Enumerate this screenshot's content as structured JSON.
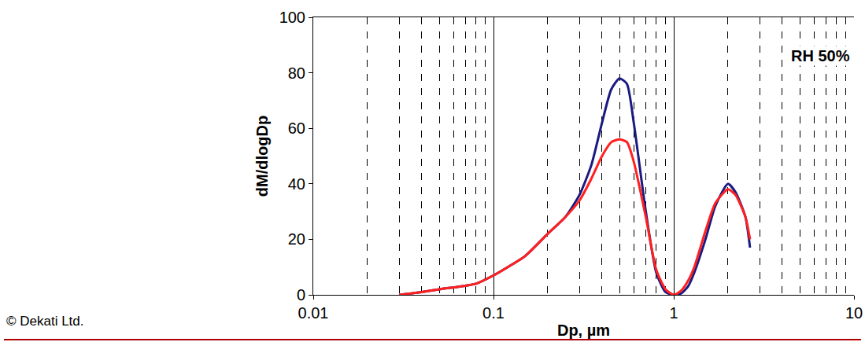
{
  "chart_data": {
    "type": "line",
    "x_label": "Dp, µm",
    "y_label": "dM/dlogDp",
    "annotations": [
      "RH 50%",
      "© Dekati Ltd."
    ],
    "x": [
      0.03,
      0.04,
      0.05,
      0.065,
      0.08,
      0.1,
      0.12,
      0.15,
      0.2,
      0.25,
      0.3,
      0.35,
      0.4,
      0.45,
      0.5,
      0.55,
      0.6,
      0.7,
      0.8,
      0.9,
      1.0,
      1.1,
      1.2,
      1.3,
      1.5,
      1.7,
      2.0,
      2.2,
      2.5,
      2.65
    ],
    "series": [
      {
        "color": "#1a1a80",
        "values": [
          0,
          1,
          2,
          3,
          4,
          7,
          10,
          14,
          22,
          28,
          36,
          47,
          62,
          74,
          78,
          76,
          62,
          30,
          8,
          1,
          0,
          0.5,
          3,
          8,
          20,
          32,
          40,
          37,
          28,
          17
        ]
      },
      {
        "color": "#ff2020",
        "values": [
          0,
          1,
          2,
          3,
          4,
          7,
          10,
          14,
          22,
          28,
          34,
          42,
          50,
          55,
          56,
          55,
          48,
          28,
          9,
          2,
          0,
          1.5,
          5,
          10,
          23,
          33,
          38,
          36,
          28,
          20
        ]
      }
    ],
    "xlim": [
      0.01,
      10
    ],
    "xticks": [
      0.01,
      0.1,
      1,
      10
    ],
    "ylim": [
      0,
      100
    ],
    "yticks": [
      0,
      20,
      40,
      60,
      80,
      100
    ],
    "log": "x",
    "grid": true
  }
}
